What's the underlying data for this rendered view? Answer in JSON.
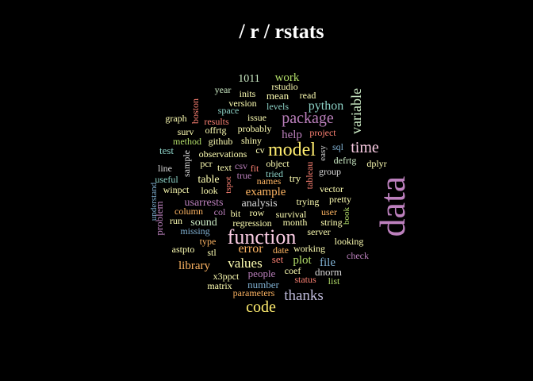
{
  "title": "/ r / rstats",
  "palette": {
    "background": "#000000",
    "title": "#ffffff",
    "words": [
      "#8dd3c7",
      "#ffffb3",
      "#bebada",
      "#fb8072",
      "#80b1d3",
      "#fdb462",
      "#b3de69",
      "#fccde5",
      "#d9d9d9",
      "#bc80bd",
      "#ccebc5",
      "#ffed6f"
    ]
  },
  "words": [
    {
      "text": "data",
      "color": "#bc80bd"
    },
    {
      "text": "function",
      "color": "#fccde5"
    },
    {
      "text": "model",
      "color": "#ffed6f"
    },
    {
      "text": "package",
      "color": "#bc80bd"
    },
    {
      "text": "time",
      "color": "#fccde5"
    },
    {
      "text": "code",
      "color": "#ffed6f"
    },
    {
      "text": "thanks",
      "color": "#bebada"
    },
    {
      "text": "variable",
      "color": "#ccebc5"
    },
    {
      "text": "values",
      "color": "#ffffb3"
    },
    {
      "text": "error",
      "color": "#fdb462"
    },
    {
      "text": "python",
      "color": "#8dd3c7"
    },
    {
      "text": "work",
      "color": "#b3de69"
    },
    {
      "text": "example",
      "color": "#fdb462"
    },
    {
      "text": "help",
      "color": "#bc80bd"
    },
    {
      "text": "file",
      "color": "#80b1d3"
    },
    {
      "text": "plot",
      "color": "#b3de69"
    },
    {
      "text": "library",
      "color": "#fdb462"
    },
    {
      "text": "table",
      "color": "#ffffb3"
    },
    {
      "text": "usarrests",
      "color": "#bc80bd"
    },
    {
      "text": "analysis",
      "color": "#d9d9d9"
    },
    {
      "text": "sound",
      "color": "#ccebc5"
    },
    {
      "text": "number",
      "color": "#80b1d3"
    },
    {
      "text": "people",
      "color": "#bc80bd"
    },
    {
      "text": "1011",
      "color": "#ccebc5"
    },
    {
      "text": "mean",
      "color": "#ffffb3"
    },
    {
      "text": "test",
      "color": "#8dd3c7"
    },
    {
      "text": "problem",
      "color": "#bc80bd"
    },
    {
      "text": "set",
      "color": "#fb8072"
    },
    {
      "text": "dnorm",
      "color": "#d9d9d9"
    },
    {
      "text": "try",
      "color": "#ffffb3"
    },
    {
      "text": "rstudio",
      "color": "#ffffb3"
    },
    {
      "text": "read",
      "color": "#ffffb3"
    },
    {
      "text": "inits",
      "color": "#ffffb3"
    },
    {
      "text": "year",
      "color": "#ccebc5"
    },
    {
      "text": "version",
      "color": "#ffffb3"
    },
    {
      "text": "levels",
      "color": "#8dd3c7"
    },
    {
      "text": "boston",
      "color": "#fb8072"
    },
    {
      "text": "graph",
      "color": "#ffffb3"
    },
    {
      "text": "results",
      "color": "#fb8072"
    },
    {
      "text": "space",
      "color": "#8dd3c7"
    },
    {
      "text": "issue",
      "color": "#ffffb3"
    },
    {
      "text": "surv",
      "color": "#ffffb3"
    },
    {
      "text": "offrtg",
      "color": "#ffffb3"
    },
    {
      "text": "probably",
      "color": "#ffffb3"
    },
    {
      "text": "project",
      "color": "#fb8072"
    },
    {
      "text": "method",
      "color": "#b3de69"
    },
    {
      "text": "github",
      "color": "#ffffb3"
    },
    {
      "text": "shiny",
      "color": "#ffffb3"
    },
    {
      "text": "observations",
      "color": "#ffffb3"
    },
    {
      "text": "cv",
      "color": "#ffffb3"
    },
    {
      "text": "easy",
      "color": "#d9d9d9"
    },
    {
      "text": "sql",
      "color": "#80b1d3"
    },
    {
      "text": "sample",
      "color": "#d9d9d9"
    },
    {
      "text": "pcr",
      "color": "#ffffb3"
    },
    {
      "text": "object",
      "color": "#ffffb3"
    },
    {
      "text": "defrtg",
      "color": "#ccebc5"
    },
    {
      "text": "dplyr",
      "color": "#ffffb3"
    },
    {
      "text": "line",
      "color": "#d9d9d9"
    },
    {
      "text": "text",
      "color": "#ffffb3"
    },
    {
      "text": "csv",
      "color": "#bc80bd"
    },
    {
      "text": "fit",
      "color": "#fb8072"
    },
    {
      "text": "tableau",
      "color": "#fb8072"
    },
    {
      "text": "group",
      "color": "#d9d9d9"
    },
    {
      "text": "useful",
      "color": "#8dd3c7"
    },
    {
      "text": "true",
      "color": "#bc80bd"
    },
    {
      "text": "tried",
      "color": "#8dd3c7"
    },
    {
      "text": "names",
      "color": "#fdb462"
    },
    {
      "text": "tspot",
      "color": "#fb8072"
    },
    {
      "text": "winpct",
      "color": "#ffffb3"
    },
    {
      "text": "look",
      "color": "#ffffb3"
    },
    {
      "text": "vector",
      "color": "#ffffb3"
    },
    {
      "text": "understand",
      "color": "#80b1d3"
    },
    {
      "text": "trying",
      "color": "#ffffb3"
    },
    {
      "text": "pretty",
      "color": "#ffffb3"
    },
    {
      "text": "book",
      "color": "#b3de69"
    },
    {
      "text": "column",
      "color": "#fdb462"
    },
    {
      "text": "col",
      "color": "#bc80bd"
    },
    {
      "text": "bit",
      "color": "#ffffb3"
    },
    {
      "text": "row",
      "color": "#ffffb3"
    },
    {
      "text": "survival",
      "color": "#ffffb3"
    },
    {
      "text": "user",
      "color": "#fdb462"
    },
    {
      "text": "run",
      "color": "#ffffb3"
    },
    {
      "text": "regression",
      "color": "#ffffb3"
    },
    {
      "text": "month",
      "color": "#ffffb3"
    },
    {
      "text": "string",
      "color": "#ffffb3"
    },
    {
      "text": "missing",
      "color": "#80b1d3"
    },
    {
      "text": "server",
      "color": "#ffffb3"
    },
    {
      "text": "type",
      "color": "#fdb462"
    },
    {
      "text": "looking",
      "color": "#ffffb3"
    },
    {
      "text": "astpto",
      "color": "#ffffb3"
    },
    {
      "text": "stl",
      "color": "#ffffb3"
    },
    {
      "text": "date",
      "color": "#fdb462"
    },
    {
      "text": "working",
      "color": "#ffffb3"
    },
    {
      "text": "check",
      "color": "#bc80bd"
    },
    {
      "text": "coef",
      "color": "#ffffb3"
    },
    {
      "text": "x3ppct",
      "color": "#ffffb3"
    },
    {
      "text": "status",
      "color": "#fb8072"
    },
    {
      "text": "list",
      "color": "#b3de69"
    },
    {
      "text": "matrix",
      "color": "#ffffb3"
    },
    {
      "text": "parameters",
      "color": "#fdb462"
    }
  ]
}
